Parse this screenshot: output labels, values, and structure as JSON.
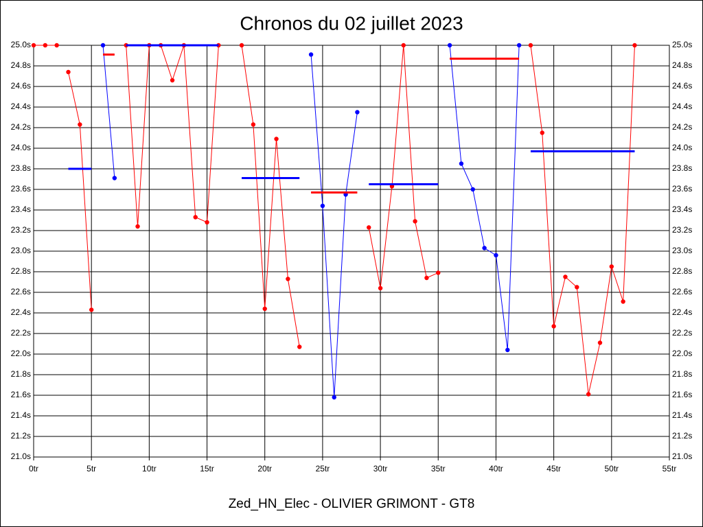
{
  "chart_data": {
    "type": "line",
    "title": "Chronos du 02 juillet 2023",
    "xlabel": "Zed_HN_Elec - OLIVIER GRIMONT - GT8",
    "xlim": [
      0,
      55
    ],
    "ylim": [
      21.0,
      25.0
    ],
    "xticks": [
      {
        "value": 0,
        "label": "0tr"
      },
      {
        "value": 5,
        "label": "5tr"
      },
      {
        "value": 10,
        "label": "10tr"
      },
      {
        "value": 15,
        "label": "15tr"
      },
      {
        "value": 20,
        "label": "20tr"
      },
      {
        "value": 25,
        "label": "25tr"
      },
      {
        "value": 30,
        "label": "30tr"
      },
      {
        "value": 35,
        "label": "35tr"
      },
      {
        "value": 40,
        "label": "40tr"
      },
      {
        "value": 45,
        "label": "45tr"
      },
      {
        "value": 50,
        "label": "50tr"
      },
      {
        "value": 55,
        "label": "55tr"
      }
    ],
    "yticks": [
      {
        "value": 21.0,
        "label": "21.0s"
      },
      {
        "value": 21.2,
        "label": "21.2s"
      },
      {
        "value": 21.4,
        "label": "21.4s"
      },
      {
        "value": 21.6,
        "label": "21.6s"
      },
      {
        "value": 21.8,
        "label": "21.8s"
      },
      {
        "value": 22.0,
        "label": "22.0s"
      },
      {
        "value": 22.2,
        "label": "22.2s"
      },
      {
        "value": 22.4,
        "label": "22.4s"
      },
      {
        "value": 22.6,
        "label": "22.6s"
      },
      {
        "value": 22.8,
        "label": "22.8s"
      },
      {
        "value": 23.0,
        "label": "23.0s"
      },
      {
        "value": 23.2,
        "label": "23.2s"
      },
      {
        "value": 23.4,
        "label": "23.4s"
      },
      {
        "value": 23.6,
        "label": "23.6s"
      },
      {
        "value": 23.8,
        "label": "23.8s"
      },
      {
        "value": 24.0,
        "label": "24.0s"
      },
      {
        "value": 24.2,
        "label": "24.2s"
      },
      {
        "value": 24.4,
        "label": "24.4s"
      },
      {
        "value": 24.6,
        "label": "24.6s"
      },
      {
        "value": 24.8,
        "label": "24.8s"
      },
      {
        "value": 25.0,
        "label": "25.0s"
      }
    ],
    "grid": true,
    "series": [
      {
        "color": "#ff0000",
        "markers": true,
        "line_width": 1,
        "x": [
          0,
          1,
          2
        ],
        "values": [
          25.0,
          25.0,
          25.0
        ]
      },
      {
        "color": "#ff0000",
        "markers": true,
        "line_width": 1,
        "x": [
          3,
          4,
          5
        ],
        "values": [
          24.74,
          24.23,
          22.43
        ]
      },
      {
        "color": "#0000ff",
        "markers": false,
        "line_width": 3,
        "x": [
          3,
          5
        ],
        "values": [
          23.8,
          23.8
        ]
      },
      {
        "color": "#0000ff",
        "markers": true,
        "line_width": 1,
        "x": [
          6,
          7
        ],
        "values": [
          25.0,
          23.71
        ]
      },
      {
        "color": "#ff0000",
        "markers": false,
        "line_width": 3,
        "x": [
          6,
          7
        ],
        "values": [
          24.91,
          24.91
        ]
      },
      {
        "color": "#ff0000",
        "markers": true,
        "line_width": 1,
        "x": [
          8,
          9,
          10,
          11,
          12,
          13,
          14,
          15,
          16
        ],
        "values": [
          25.0,
          23.24,
          25.0,
          25.0,
          24.66,
          25.0,
          23.33,
          23.28,
          25.0
        ]
      },
      {
        "color": "#0000ff",
        "markers": false,
        "line_width": 3,
        "x": [
          8,
          16
        ],
        "values": [
          25.0,
          25.0
        ]
      },
      {
        "color": "#ff0000",
        "markers": true,
        "line_width": 1,
        "x": [
          18,
          19,
          20,
          21,
          22,
          23
        ],
        "values": [
          25.0,
          24.23,
          22.44,
          24.09,
          22.73,
          22.07
        ]
      },
      {
        "color": "#0000ff",
        "markers": false,
        "line_width": 3,
        "x": [
          18,
          23
        ],
        "values": [
          23.71,
          23.71
        ]
      },
      {
        "color": "#0000ff",
        "markers": true,
        "line_width": 1,
        "x": [
          24,
          25,
          26,
          27,
          28
        ],
        "values": [
          24.91,
          23.44,
          21.58,
          23.55,
          24.35
        ]
      },
      {
        "color": "#ff0000",
        "markers": false,
        "line_width": 3,
        "x": [
          24,
          28
        ],
        "values": [
          23.57,
          23.57
        ]
      },
      {
        "color": "#ff0000",
        "markers": true,
        "line_width": 1,
        "x": [
          29,
          30,
          31,
          32,
          33,
          34,
          35
        ],
        "values": [
          23.23,
          22.64,
          23.63,
          25.0,
          23.29,
          22.74,
          22.79
        ]
      },
      {
        "color": "#0000ff",
        "markers": false,
        "line_width": 3,
        "x": [
          29,
          35
        ],
        "values": [
          23.65,
          23.65
        ]
      },
      {
        "color": "#0000ff",
        "markers": true,
        "line_width": 1,
        "x": [
          36,
          37,
          38,
          39,
          40,
          41,
          42
        ],
        "values": [
          25.0,
          23.85,
          23.6,
          23.03,
          22.96,
          22.04,
          25.0
        ]
      },
      {
        "color": "#ff0000",
        "markers": false,
        "line_width": 3,
        "x": [
          36,
          42
        ],
        "values": [
          24.87,
          24.87
        ]
      },
      {
        "color": "#ff0000",
        "markers": true,
        "line_width": 1,
        "x": [
          43,
          44,
          45,
          46,
          47,
          48,
          49,
          50,
          51,
          52
        ],
        "values": [
          25.0,
          24.15,
          22.27,
          22.75,
          22.65,
          21.61,
          22.11,
          22.85,
          22.51,
          25.0
        ]
      },
      {
        "color": "#0000ff",
        "markers": false,
        "line_width": 3,
        "x": [
          43,
          52
        ],
        "values": [
          23.97,
          23.97
        ]
      }
    ]
  }
}
